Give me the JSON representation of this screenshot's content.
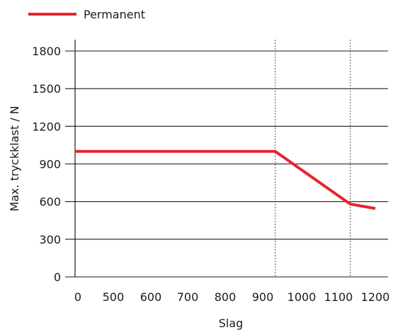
{
  "chart_data": {
    "type": "line",
    "xlabel": "Slag",
    "ylabel": "Max. tryckklast / N",
    "xlim": [
      0,
      1200
    ],
    "ylim": [
      0,
      1800
    ],
    "x_ticks": [
      0,
      500,
      600,
      700,
      800,
      900,
      1000,
      1100,
      1200
    ],
    "y_ticks": [
      0,
      300,
      600,
      900,
      1200,
      1500,
      1800
    ],
    "grid": "horizontal lines at y ticks; dotted vertical lines at x = 800 and x = 1100",
    "legend_position": "top-left",
    "series": [
      {
        "name": "Permanent",
        "color": "#e8232e",
        "x": [
          0,
          800,
          1100,
          1200
        ],
        "y": [
          1000,
          1000,
          580,
          545
        ]
      }
    ]
  }
}
